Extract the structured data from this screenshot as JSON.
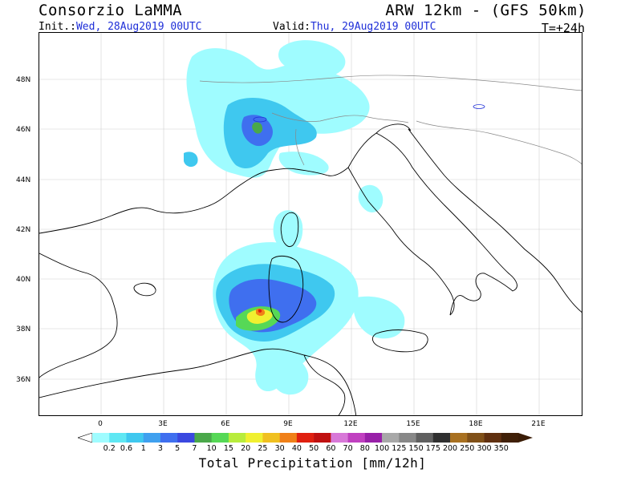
{
  "header": {
    "title": "Consorzio LaMMA",
    "model": "ARW 12km - (GFS 50km)",
    "init_label": "Init.:",
    "init_value": "Wed, 28Aug2019 00UTC",
    "valid_label": "Valid:",
    "valid_value": "Thu, 29Aug2019 00UTC",
    "timestep": "T=+24h"
  },
  "axes": {
    "lat_labels": [
      "48N",
      "46N",
      "44N",
      "42N",
      "40N",
      "38N",
      "36N"
    ],
    "lon_labels": [
      "0",
      "3E",
      "6E",
      "9E",
      "12E",
      "15E",
      "18E",
      "21E"
    ]
  },
  "colorbar": {
    "title": "Total Precipitation [mm/12h]",
    "levels": [
      "0.2",
      "0.6",
      "1",
      "3",
      "5",
      "7",
      "10",
      "15",
      "20",
      "25",
      "30",
      "40",
      "50",
      "60",
      "70",
      "80",
      "100",
      "125",
      "150",
      "175",
      "200",
      "250",
      "300",
      "350"
    ],
    "colors": [
      "#9ffcff",
      "#5fe7f3",
      "#3fc8ef",
      "#3fa0ef",
      "#3f6fef",
      "#3a48e0",
      "#4aa84a",
      "#56d856",
      "#b8ec3c",
      "#f0f030",
      "#f0c020",
      "#f08018",
      "#e02010",
      "#c01010",
      "#d878d8",
      "#c040c0",
      "#9820a8",
      "#a8a8a8",
      "#888888",
      "#606060",
      "#303030",
      "#a87020",
      "#805018",
      "#603010",
      "#402008"
    ],
    "under_color": "#ffffff",
    "over_color": "#3a1c06"
  },
  "map": {
    "land_outline_color": "#000000",
    "border_color": "#888888",
    "grid_color": "#d0d0d0"
  }
}
